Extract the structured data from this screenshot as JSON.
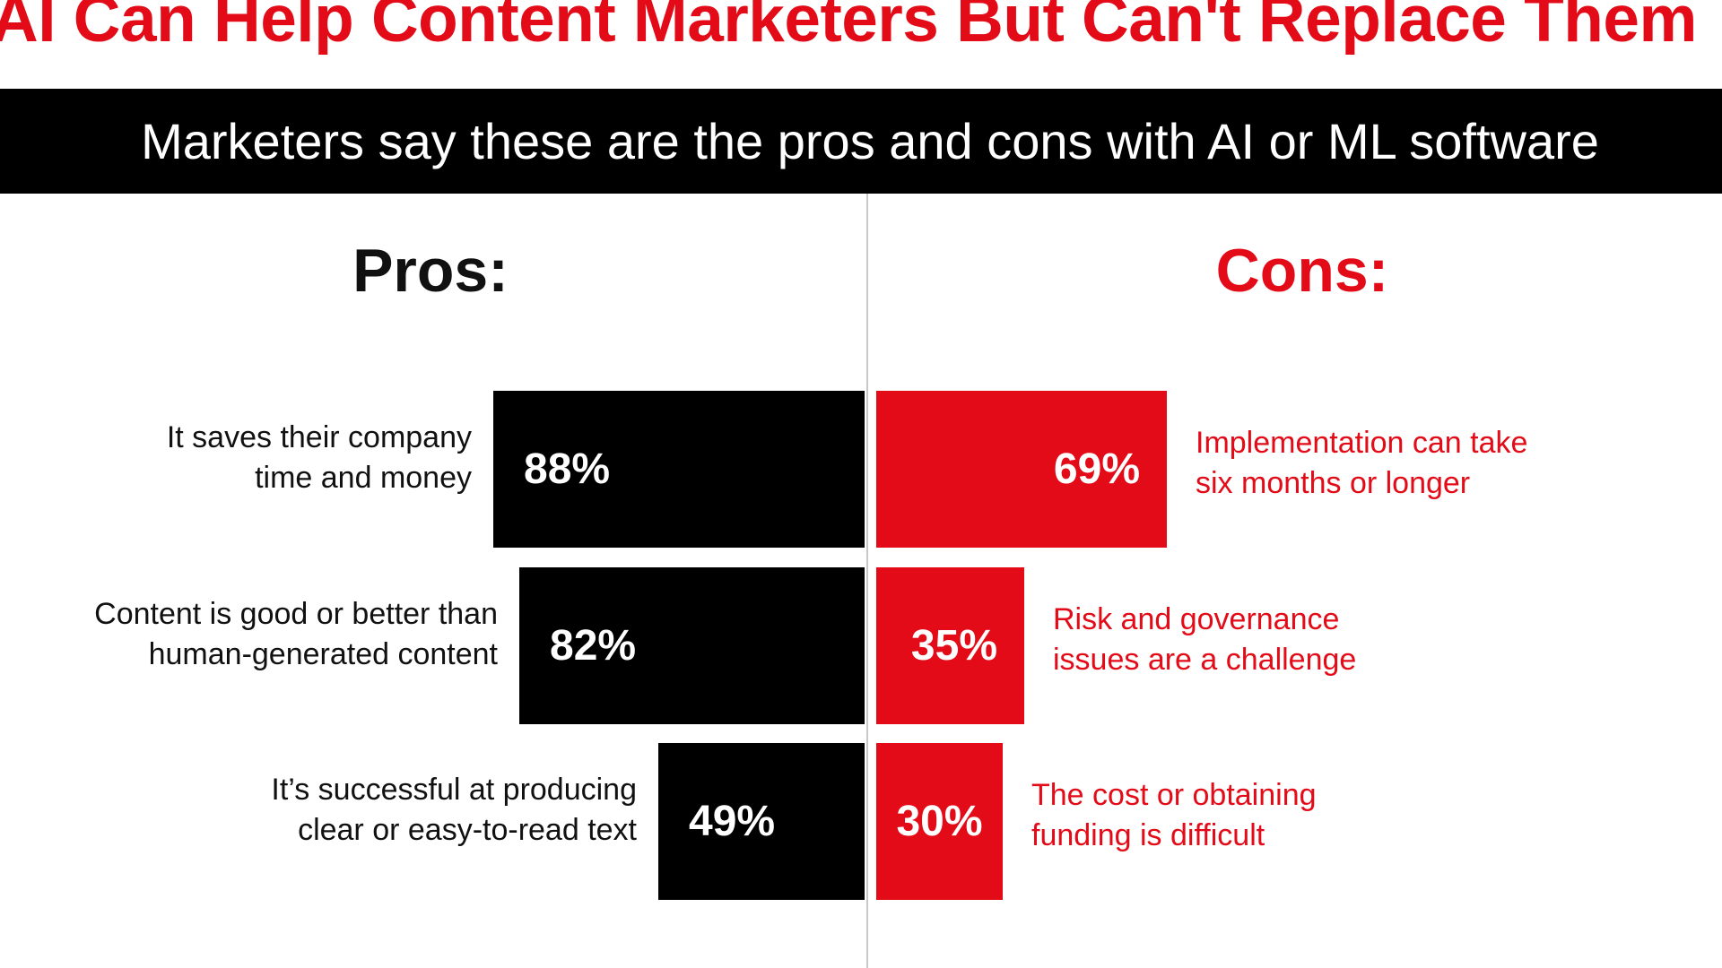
{
  "headline": "AI Can Help Content Marketers But Can't Replace Them",
  "subtitle": "Marketers say these are the pros and cons with AI or ML software",
  "colors": {
    "accent_red": "#e30b17",
    "bar_black": "#000000",
    "text_dark": "#111111"
  },
  "chart_data": {
    "type": "bar",
    "orientation": "horizontal-diverging",
    "unit": "%",
    "pros": {
      "heading": "Pros:",
      "items": [
        {
          "label_lines": [
            "It saves their company",
            "time and money"
          ],
          "value": 88,
          "value_label": "88%"
        },
        {
          "label_lines": [
            "Content is good or better than",
            "human-generated content"
          ],
          "value": 82,
          "value_label": "82%"
        },
        {
          "label_lines": [
            "It’s successful at producing",
            "clear or easy-to-read text"
          ],
          "value": 49,
          "value_label": "49%"
        }
      ]
    },
    "cons": {
      "heading": "Cons:",
      "items": [
        {
          "label_lines": [
            "Implementation can take",
            "six months or longer"
          ],
          "value": 69,
          "value_label": "69%"
        },
        {
          "label_lines": [
            "Risk and governance",
            "issues are a challenge"
          ],
          "value": 35,
          "value_label": "35%"
        },
        {
          "label_lines": [
            "The cost or obtaining",
            "funding is difficult"
          ],
          "value": 30,
          "value_label": "30%"
        }
      ]
    }
  }
}
